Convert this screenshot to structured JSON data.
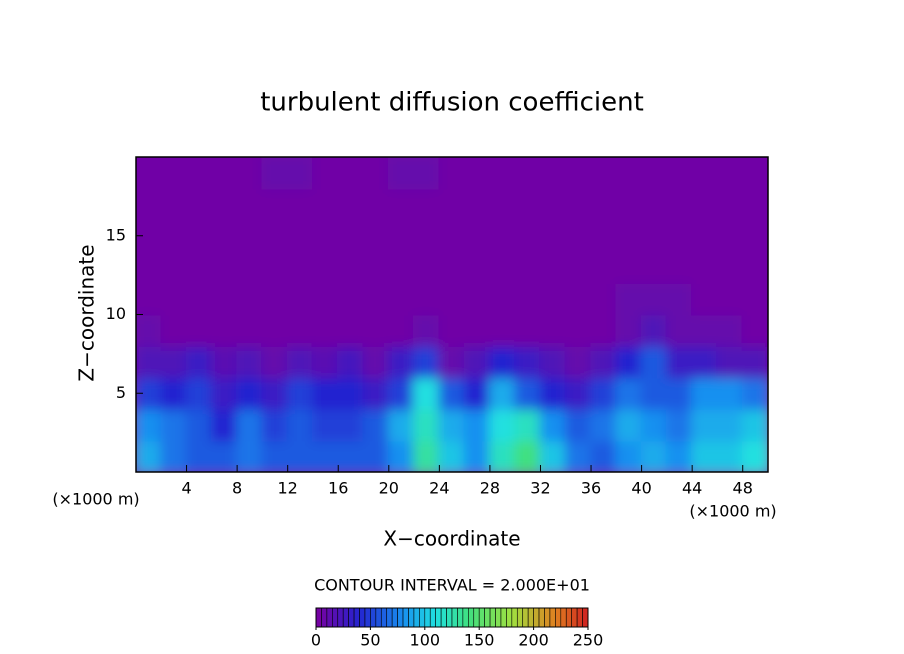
{
  "chart_data": {
    "type": "contour",
    "title": "turbulent diffusion coefficient",
    "x_label": "X−coordinate",
    "y_label": "Z−coordinate",
    "x_unit": "(×1000 m)",
    "y_unit": "(×1000 m)",
    "note": "CONTOUR INTERVAL = 2.000E+01",
    "xlim": [
      0,
      50
    ],
    "ylim": [
      0,
      20
    ],
    "xticks": [
      4,
      8,
      12,
      16,
      20,
      24,
      28,
      32,
      36,
      40,
      44,
      48
    ],
    "yticks": [
      5,
      10,
      15
    ],
    "x": [
      1,
      3,
      5,
      7,
      9,
      11,
      13,
      15,
      17,
      19,
      21,
      23,
      25,
      27,
      29,
      31,
      33,
      35,
      37,
      39,
      41,
      43,
      45,
      47,
      49
    ],
    "y": [
      1,
      3,
      5,
      7,
      9,
      11,
      13,
      15,
      17,
      19
    ],
    "z": [
      [
        90,
        70,
        60,
        60,
        70,
        60,
        60,
        60,
        60,
        60,
        80,
        130,
        100,
        80,
        120,
        140,
        100,
        70,
        60,
        80,
        90,
        80,
        100,
        100,
        110
      ],
      [
        80,
        70,
        60,
        40,
        70,
        50,
        60,
        50,
        50,
        60,
        90,
        120,
        90,
        80,
        110,
        120,
        80,
        60,
        70,
        90,
        80,
        70,
        90,
        90,
        100
      ],
      [
        50,
        40,
        50,
        30,
        40,
        30,
        50,
        40,
        40,
        30,
        50,
        110,
        60,
        40,
        90,
        60,
        40,
        30,
        50,
        70,
        60,
        60,
        80,
        80,
        70
      ],
      [
        20,
        20,
        30,
        15,
        20,
        10,
        20,
        15,
        25,
        10,
        30,
        50,
        10,
        20,
        40,
        30,
        20,
        10,
        20,
        40,
        60,
        30,
        30,
        20,
        20
      ],
      [
        10,
        5,
        5,
        5,
        5,
        5,
        5,
        5,
        5,
        5,
        5,
        10,
        5,
        5,
        5,
        5,
        5,
        5,
        5,
        10,
        20,
        10,
        10,
        10,
        5
      ],
      [
        5,
        5,
        5,
        5,
        5,
        5,
        5,
        5,
        5,
        5,
        5,
        5,
        5,
        5,
        5,
        5,
        5,
        5,
        5,
        10,
        10,
        10,
        5,
        5,
        5
      ],
      [
        5,
        5,
        5,
        5,
        5,
        5,
        5,
        5,
        5,
        5,
        5,
        5,
        5,
        5,
        5,
        5,
        5,
        5,
        5,
        5,
        5,
        5,
        5,
        5,
        5
      ],
      [
        5,
        5,
        5,
        5,
        5,
        5,
        5,
        5,
        5,
        5,
        5,
        5,
        5,
        5,
        5,
        5,
        5,
        5,
        5,
        5,
        5,
        5,
        5,
        5,
        5
      ],
      [
        5,
        5,
        5,
        5,
        5,
        5,
        5,
        5,
        5,
        5,
        5,
        5,
        5,
        5,
        5,
        5,
        5,
        5,
        5,
        5,
        5,
        5,
        5,
        5,
        5
      ],
      [
        5,
        5,
        5,
        5,
        5,
        10,
        10,
        5,
        5,
        5,
        10,
        10,
        5,
        5,
        5,
        5,
        5,
        5,
        5,
        5,
        5,
        5,
        5,
        5,
        5
      ]
    ],
    "clim": [
      0,
      250
    ],
    "colorbar_ticks": [
      0,
      50,
      100,
      150,
      200,
      250
    ],
    "colormap": [
      [
        0,
        "#7a00a0"
      ],
      [
        40,
        "#2424d0"
      ],
      [
        80,
        "#1890f0"
      ],
      [
        110,
        "#20e0e0"
      ],
      [
        140,
        "#40e080"
      ],
      [
        180,
        "#a0e040"
      ],
      [
        220,
        "#e08020"
      ],
      [
        250,
        "#d02020"
      ]
    ]
  }
}
